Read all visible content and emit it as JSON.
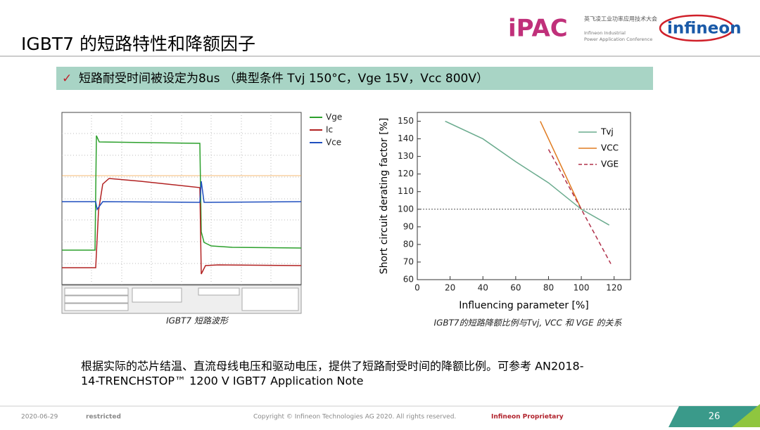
{
  "header": {
    "title": "IGBT7 的短路特性和降额因子",
    "ipac_logo": "iPAC",
    "ipac_cn": "英飞凌工业功率应用技术大会",
    "ipac_en_1": "Infineon Industrial",
    "ipac_en_2": "Power Application Conference",
    "infineon_logo": "infineon"
  },
  "highlight": {
    "check": "✓",
    "text": "短路耐受时间被设定为8us （典型条件 Tvj 150°C，Vge 15V，Vcc 800V）"
  },
  "scope": {
    "legend": [
      {
        "name": "Vge",
        "color": "#2ca02c"
      },
      {
        "name": "Ic",
        "color": "#b22222"
      },
      {
        "name": "Vce",
        "color": "#1f4fbf"
      }
    ],
    "caption": "IGBT7 短路波形"
  },
  "chart": {
    "type": "line",
    "xlabel": "Influencing parameter [%]",
    "ylabel": "Short circuit derating factor [%]",
    "xlim": [
      0,
      130
    ],
    "xticks": [
      0,
      20,
      40,
      60,
      80,
      100,
      120
    ],
    "ylim": [
      60,
      155
    ],
    "yticks": [
      60,
      70,
      80,
      90,
      100,
      110,
      120,
      130,
      140,
      150
    ],
    "hline": 100,
    "series": [
      {
        "name": "Tvj",
        "color": "#6aab8e",
        "dash": false,
        "x": [
          17,
          40,
          60,
          80,
          100,
          117
        ],
        "values": [
          150,
          140,
          127,
          115,
          100,
          91
        ]
      },
      {
        "name": "VCC",
        "color": "#e07b20",
        "dash": false,
        "x": [
          75,
          100
        ],
        "values": [
          150,
          100
        ]
      },
      {
        "name": "VGE",
        "color": "#b0304a",
        "dash": true,
        "x": [
          80,
          100,
          118
        ],
        "values": [
          134,
          100,
          69
        ]
      }
    ],
    "caption": "IGBT7的短路降额比例与Tvj, VCC 和 VGE 的关系"
  },
  "body": {
    "line_1": "根据实际的芯片结温、直流母线电压和驱动电压，提供了短路耐受时间的降额比例。可参考  AN2018-",
    "line_2": "14-TRENCHSTOP™ 1200 V IGBT7 Application Note"
  },
  "footer": {
    "date": "2020-06-29",
    "classification": "restricted",
    "copyright": "Copyright © Infineon Technologies AG 2020. All rights reserved.",
    "proprietary": "Infineon  Proprietary",
    "page": "26"
  }
}
